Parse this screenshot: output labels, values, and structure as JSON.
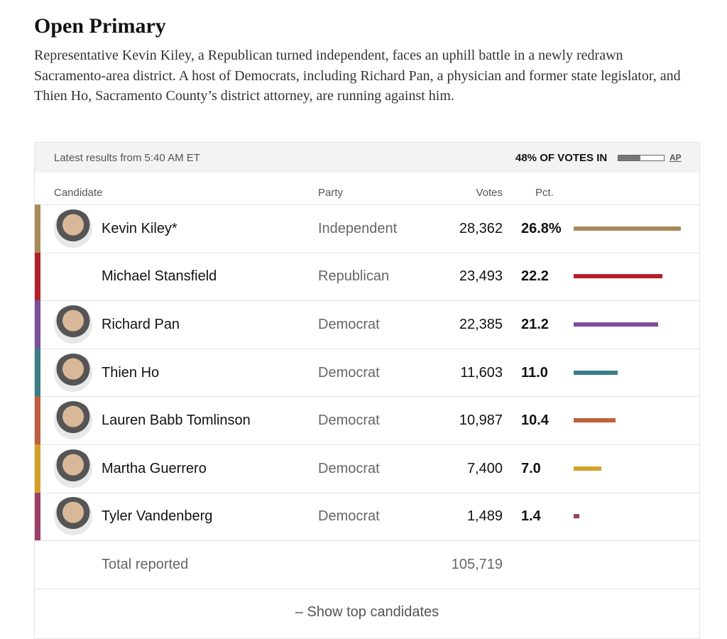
{
  "header": {
    "title": "Open Primary",
    "description": "Representative Kevin Kiley, a Republican turned independent, faces an uphill battle in a newly redrawn Sacramento-area district. A host of Democrats, including Richard Pan, a physician and former state legislator, and Thien Ho, Sacramento County’s district attorney, are running against him."
  },
  "table": {
    "updated": "Latest results from 5:40 AM ET",
    "reporting": {
      "value": 48,
      "label": "48% OF VOTES IN"
    },
    "source": "AP",
    "columns": [
      "Candidate",
      "Party",
      "Votes",
      "Pct."
    ],
    "rows": [
      {
        "name": "Kevin Kiley*",
        "party": "Independent",
        "votes": "28,362",
        "pct": 26.8,
        "pct_label": "26.8%",
        "color": "#a88a57",
        "photo": true
      },
      {
        "name": "Michael Stansfield",
        "party": "Republican",
        "votes": "23,493",
        "pct": 22.2,
        "pct_label": "22.2",
        "color": "#b3202c",
        "photo": false
      },
      {
        "name": "Richard Pan",
        "party": "Democrat",
        "votes": "22,385",
        "pct": 21.2,
        "pct_label": "21.2",
        "color": "#7a4e9c",
        "photo": true
      },
      {
        "name": "Thien Ho",
        "party": "Democrat",
        "votes": "11,603",
        "pct": 11.0,
        "pct_label": "11.0",
        "color": "#3a7e86",
        "photo": true
      },
      {
        "name": "Lauren Babb Tomlinson",
        "party": "Democrat",
        "votes": "10,987",
        "pct": 10.4,
        "pct_label": "10.4",
        "color": "#bf5f3e",
        "photo": true
      },
      {
        "name": "Martha Guerrero",
        "party": "Democrat",
        "votes": "7,400",
        "pct": 7.0,
        "pct_label": "7.0",
        "color": "#d4a02a",
        "photo": true
      },
      {
        "name": "Tyler Vandenberg",
        "party": "Democrat",
        "votes": "1,489",
        "pct": 1.4,
        "pct_label": "1.4",
        "color": "#9c3f68",
        "photo": true
      }
    ],
    "total_label": "Total reported",
    "total_votes": "105,719",
    "toggle": "– Show top candidates"
  }
}
